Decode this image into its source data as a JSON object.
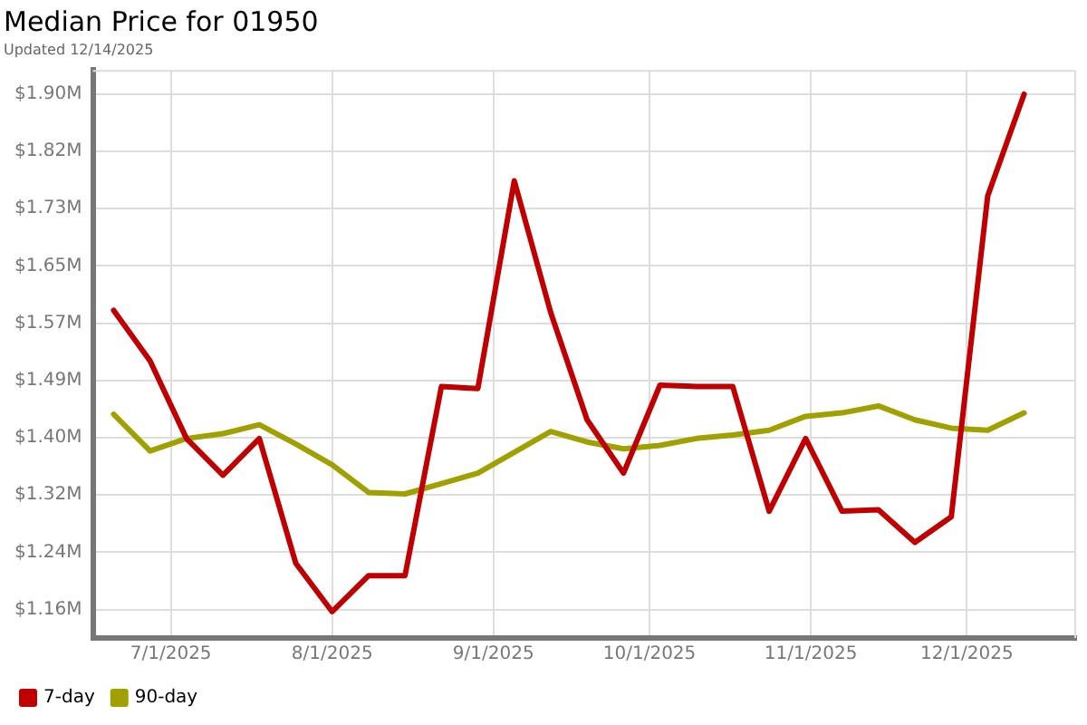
{
  "chart_data": {
    "type": "line",
    "title": "Median Price for 01950",
    "subtitle": "Updated 12/14/2025",
    "x": [
      "2025-06-20",
      "2025-06-27",
      "2025-07-04",
      "2025-07-11",
      "2025-07-18",
      "2025-07-25",
      "2025-08-01",
      "2025-08-08",
      "2025-08-15",
      "2025-08-22",
      "2025-08-29",
      "2025-09-05",
      "2025-09-12",
      "2025-09-19",
      "2025-09-26",
      "2025-10-03",
      "2025-10-10",
      "2025-10-17",
      "2025-10-24",
      "2025-10-31",
      "2025-11-07",
      "2025-11-14",
      "2025-11-21",
      "2025-11-28",
      "2025-12-05",
      "2025-12-12"
    ],
    "series": [
      {
        "name": "7-day",
        "color": "#c00000",
        "values": [
          1.588,
          1.515,
          1.403,
          1.35,
          1.403,
          1.223,
          1.153,
          1.205,
          1.205,
          1.478,
          1.475,
          1.775,
          1.585,
          1.43,
          1.353,
          1.48,
          1.478,
          1.478,
          1.298,
          1.403,
          1.298,
          1.3,
          1.253,
          1.29,
          1.753,
          1.9
        ]
      },
      {
        "name": "90-day",
        "color": "#a0a000",
        "values": [
          1.438,
          1.385,
          1.403,
          1.41,
          1.423,
          1.395,
          1.365,
          1.325,
          1.323,
          1.338,
          1.353,
          1.383,
          1.413,
          1.398,
          1.388,
          1.393,
          1.403,
          1.408,
          1.415,
          1.435,
          1.44,
          1.45,
          1.43,
          1.418,
          1.415,
          1.44
        ]
      }
    ],
    "xlim": [
      "2025-06-16",
      "2025-12-22"
    ],
    "xticks": [
      {
        "value": "2025-07-01",
        "label": "7/1/2025"
      },
      {
        "value": "2025-08-01",
        "label": "8/1/2025"
      },
      {
        "value": "2025-09-01",
        "label": "9/1/2025"
      },
      {
        "value": "2025-10-01",
        "label": "10/1/2025"
      },
      {
        "value": "2025-11-01",
        "label": "11/1/2025"
      },
      {
        "value": "2025-12-01",
        "label": "12/1/2025"
      }
    ],
    "ylim": [
      1.115,
      1.935
    ],
    "yticks": [
      {
        "value": 1.156,
        "label": "$1.16M"
      },
      {
        "value": 1.2387,
        "label": "$1.24M"
      },
      {
        "value": 1.3214,
        "label": "$1.32M"
      },
      {
        "value": 1.4041,
        "label": "$1.40M"
      },
      {
        "value": 1.4868,
        "label": "$1.49M"
      },
      {
        "value": 1.5695,
        "label": "$1.57M"
      },
      {
        "value": 1.6522,
        "label": "$1.65M"
      },
      {
        "value": 1.7349,
        "label": "$1.73M"
      },
      {
        "value": 1.8176,
        "label": "$1.82M"
      },
      {
        "value": 1.9003,
        "label": "$1.90M"
      }
    ],
    "grid": true,
    "legend": "bottom left",
    "marker": "none",
    "line_style": "solid"
  }
}
